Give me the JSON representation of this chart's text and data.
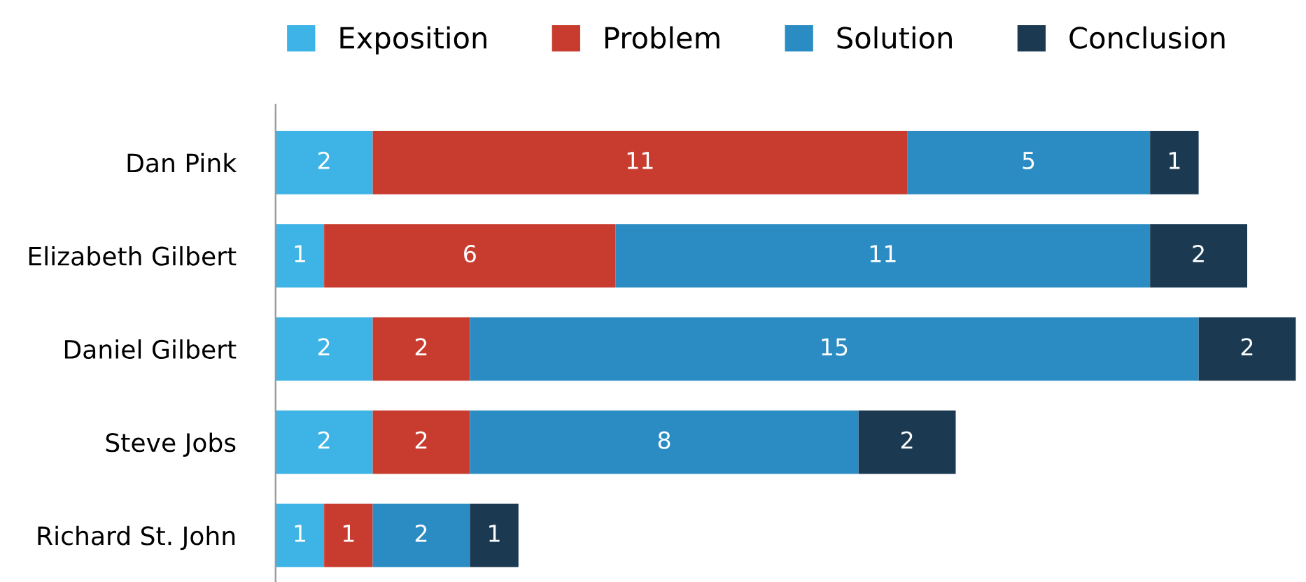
{
  "chart_data": {
    "type": "bar",
    "orientation": "horizontal",
    "stacked": true,
    "data_labels": true,
    "legend": "top",
    "grid": false,
    "categories": [
      "Dan Pink",
      "Elizabeth Gilbert",
      "Daniel Gilbert",
      "Steve Jobs",
      "Richard St. John"
    ],
    "series": [
      {
        "name": "Exposition",
        "color": "#3db3e6",
        "values": [
          2,
          1,
          2,
          2,
          1
        ]
      },
      {
        "name": "Problem",
        "color": "#c83c2f",
        "values": [
          11,
          6,
          2,
          2,
          1
        ]
      },
      {
        "name": "Solution",
        "color": "#2b8cc4",
        "values": [
          5,
          11,
          15,
          8,
          2
        ]
      },
      {
        "name": "Conclusion",
        "color": "#1b3a52",
        "values": [
          1,
          2,
          2,
          2,
          1
        ]
      }
    ]
  }
}
